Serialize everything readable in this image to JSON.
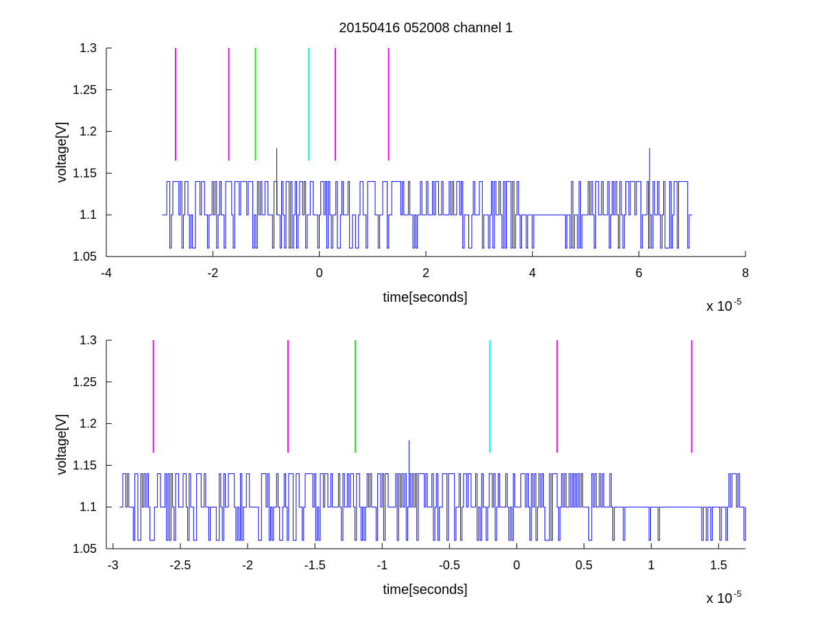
{
  "chart_data": [
    {
      "type": "line",
      "title": "20150416 052008 channel 1",
      "xlabel": "time[seconds]",
      "ylabel": "voltage[V]",
      "x_multiplier_base": "x 10",
      "x_multiplier_exp": "-5",
      "xlim": [
        -4,
        8
      ],
      "ylim": [
        1.05,
        1.3
      ],
      "xticks": [
        -4,
        -2,
        0,
        2,
        4,
        6,
        8
      ],
      "xtick_labels": [
        "-4",
        "-2",
        "0",
        "2",
        "4",
        "6",
        "8"
      ],
      "yticks": [
        1.05,
        1.1,
        1.15,
        1.2,
        1.25,
        1.3
      ],
      "ytick_labels": [
        "1.05",
        "1.1",
        "1.15",
        "1.2",
        "1.25",
        "1.3"
      ],
      "grid": false,
      "signal": {
        "color": "#0000ff",
        "x_start": -2.95,
        "x_end": 7.0,
        "baseline": 1.1,
        "levels": [
          1.06,
          1.1,
          1.12,
          1.14
        ],
        "spikes": [
          {
            "x": -0.8,
            "y": 1.18
          },
          {
            "x": 6.2,
            "y": 1.18
          }
        ]
      },
      "markers": [
        {
          "x": -2.7,
          "y_range": [
            1.165,
            1.3
          ],
          "color": "#ff00ff"
        },
        {
          "x": -1.7,
          "y_range": [
            1.165,
            1.3
          ],
          "color": "#ff00ff"
        },
        {
          "x": -1.2,
          "y_range": [
            1.165,
            1.3
          ],
          "color": "#00ff00"
        },
        {
          "x": -0.2,
          "y_range": [
            1.165,
            1.3
          ],
          "color": "#00ffff"
        },
        {
          "x": 0.3,
          "y_range": [
            1.165,
            1.3
          ],
          "color": "#ff00ff"
        },
        {
          "x": 1.3,
          "y_range": [
            1.165,
            1.3
          ],
          "color": "#ff00ff"
        }
      ]
    },
    {
      "type": "line",
      "title": "",
      "xlabel": "time[seconds]",
      "ylabel": "voltage[V]",
      "x_multiplier_base": "x 10",
      "x_multiplier_exp": "-5",
      "xlim": [
        -3.05,
        1.7
      ],
      "ylim": [
        1.05,
        1.3
      ],
      "xticks": [
        -3,
        -2.5,
        -2,
        -1.5,
        -1,
        -0.5,
        0,
        0.5,
        1,
        1.5
      ],
      "xtick_labels": [
        "-3",
        "-2.5",
        "-2",
        "-1.5",
        "-1",
        "-0.5",
        "0",
        "0.5",
        "1",
        "1.5"
      ],
      "yticks": [
        1.05,
        1.1,
        1.15,
        1.2,
        1.25,
        1.3
      ],
      "ytick_labels": [
        "1.05",
        "1.1",
        "1.15",
        "1.2",
        "1.25",
        "1.3"
      ],
      "grid": false,
      "signal": {
        "color": "#0000ff",
        "x_start": -2.95,
        "x_end": 1.7,
        "baseline": 1.1,
        "levels": [
          1.06,
          1.08,
          1.1,
          1.12,
          1.14
        ],
        "spikes": [
          {
            "x": -0.8,
            "y": 1.18
          }
        ]
      },
      "markers": [
        {
          "x": -2.7,
          "y_range": [
            1.165,
            1.3
          ],
          "color": "#ff00ff"
        },
        {
          "x": -1.7,
          "y_range": [
            1.165,
            1.3
          ],
          "color": "#ff00ff"
        },
        {
          "x": -1.2,
          "y_range": [
            1.165,
            1.3
          ],
          "color": "#00ff00"
        },
        {
          "x": -0.2,
          "y_range": [
            1.165,
            1.3
          ],
          "color": "#00ffff"
        },
        {
          "x": 0.3,
          "y_range": [
            1.165,
            1.3
          ],
          "color": "#ff00ff"
        },
        {
          "x": 1.3,
          "y_range": [
            1.165,
            1.3
          ],
          "color": "#ff00ff"
        }
      ]
    }
  ]
}
